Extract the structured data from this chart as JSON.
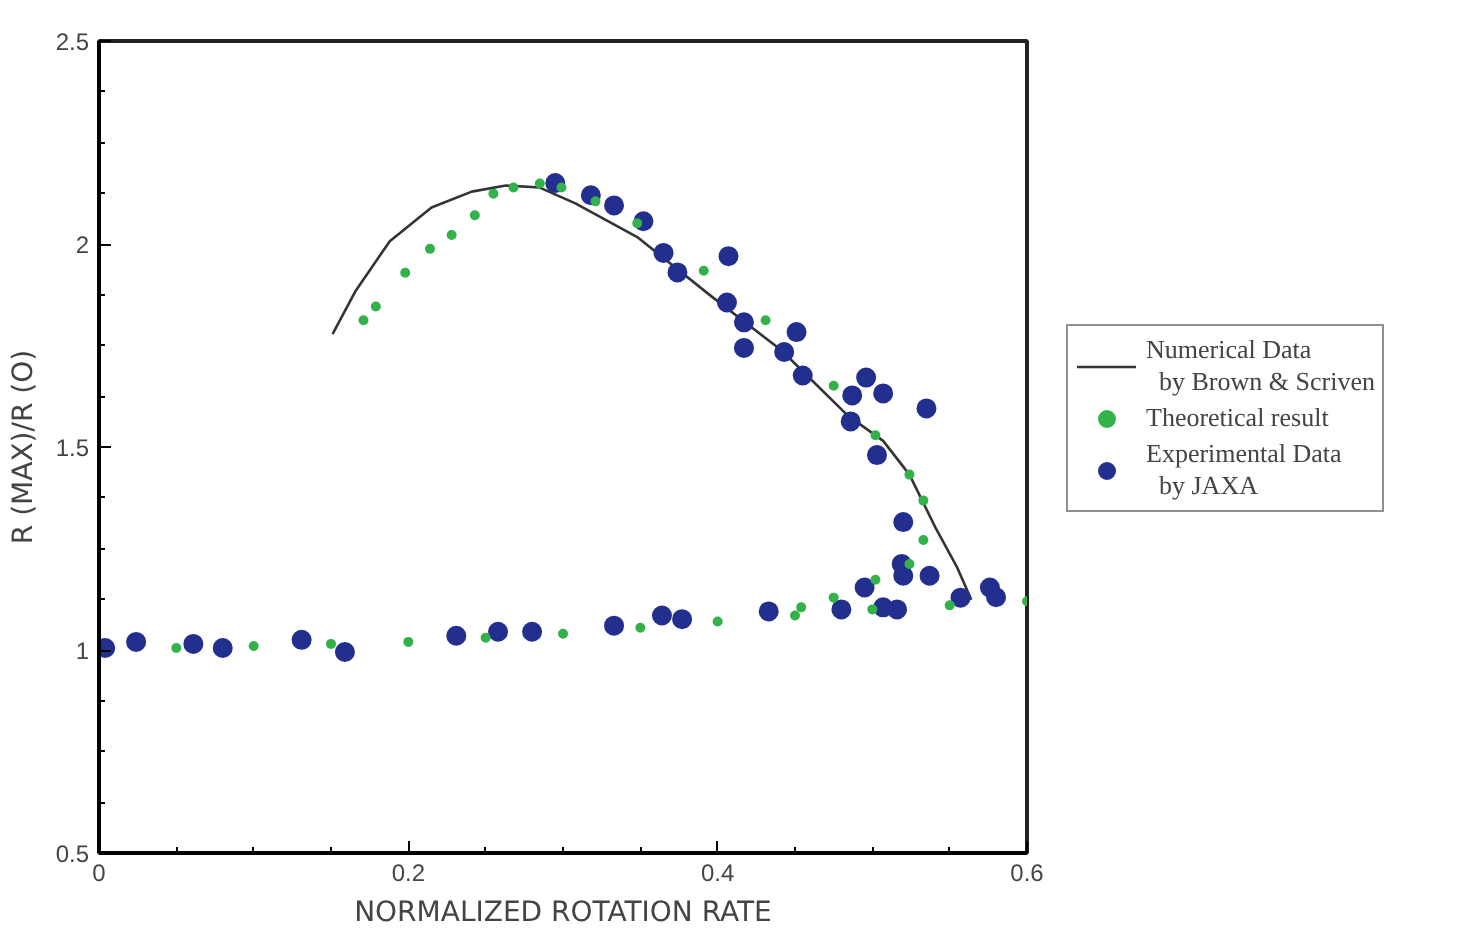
{
  "chart_data": {
    "type": "scatter",
    "xlabel": "NORMALIZED ROTATION RATE",
    "ylabel": "R (MAX)/R (O)",
    "xlim": [
      0,
      0.6
    ],
    "xticks": [
      0,
      0.2,
      0.4,
      0.6
    ],
    "ylim": [
      0.5,
      2.5
    ],
    "yticks": [
      0.5,
      1,
      1.5,
      2,
      2.5
    ],
    "grid": false,
    "legend": "right",
    "series": [
      {
        "name": "Numerical Data\n  by Brown & Scriven",
        "type": "line",
        "color": "#333333",
        "line_style": "solid",
        "marker": "none",
        "x": [
          0.151,
          0.166,
          0.188,
          0.215,
          0.241,
          0.263,
          0.285,
          0.308,
          0.348,
          0.396,
          0.441,
          0.484,
          0.507,
          0.524,
          0.541,
          0.555,
          0.564
        ],
        "values": [
          1.778,
          1.885,
          2.007,
          2.09,
          2.129,
          2.144,
          2.139,
          2.1,
          2.017,
          1.871,
          1.739,
          1.578,
          1.515,
          1.432,
          1.3,
          1.202,
          1.124
        ]
      },
      {
        "name": "Theoretical result",
        "type": "scatter",
        "color": "#33b24a",
        "marker": "circle",
        "x": [
          0.171,
          0.179,
          0.198,
          0.214,
          0.228,
          0.243,
          0.255,
          0.268,
          0.285,
          0.299,
          0.321,
          0.348,
          0.391,
          0.431,
          0.475,
          0.502,
          0.524,
          0.533,
          0.533,
          0.524,
          0.502,
          0.475,
          0.454,
          0.05,
          0.1,
          0.15,
          0.2,
          0.25,
          0.3,
          0.35,
          0.4,
          0.45,
          0.5,
          0.55,
          0.6
        ],
        "values": [
          1.812,
          1.846,
          1.929,
          1.988,
          2.022,
          2.071,
          2.124,
          2.139,
          2.149,
          2.139,
          2.105,
          2.051,
          1.934,
          1.812,
          1.651,
          1.529,
          1.432,
          1.368,
          1.271,
          1.212,
          1.173,
          1.129,
          1.105,
          1.005,
          1.01,
          1.015,
          1.02,
          1.03,
          1.04,
          1.055,
          1.07,
          1.085,
          1.1,
          1.11,
          1.12
        ]
      },
      {
        "name": "Experimental Data\n  by JAXA",
        "type": "scatter",
        "color": "#232f8f",
        "marker": "circle",
        "x": [
          0.004,
          0.024,
          0.061,
          0.08,
          0.131,
          0.159,
          0.231,
          0.258,
          0.28,
          0.333,
          0.364,
          0.377,
          0.433,
          0.48,
          0.507,
          0.516,
          0.557,
          0.576,
          0.58,
          0.295,
          0.318,
          0.333,
          0.352,
          0.365,
          0.374,
          0.407,
          0.406,
          0.417,
          0.417,
          0.451,
          0.443,
          0.455,
          0.496,
          0.487,
          0.507,
          0.486,
          0.535,
          0.503,
          0.52,
          0.519,
          0.52,
          0.537,
          0.495
        ],
        "values": [
          1.005,
          1.02,
          1.015,
          1.005,
          1.025,
          0.995,
          1.035,
          1.045,
          1.045,
          1.06,
          1.085,
          1.076,
          1.095,
          1.1,
          1.105,
          1.1,
          1.129,
          1.154,
          1.13,
          2.15,
          2.12,
          2.095,
          2.056,
          1.978,
          1.93,
          1.97,
          1.856,
          1.807,
          1.744,
          1.783,
          1.734,
          1.676,
          1.671,
          1.627,
          1.632,
          1.563,
          1.595,
          1.48,
          1.315,
          1.212,
          1.183,
          1.183,
          1.154
        ]
      }
    ]
  }
}
